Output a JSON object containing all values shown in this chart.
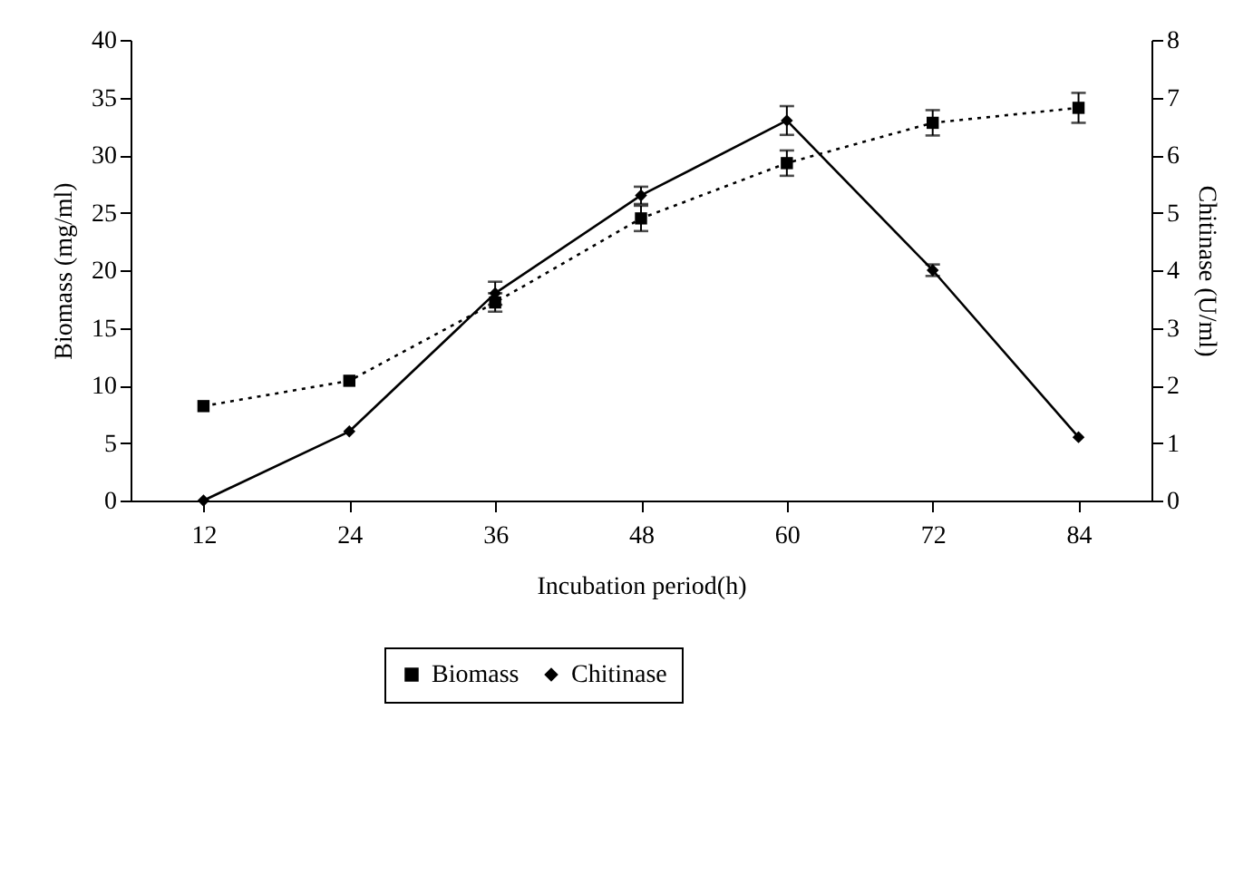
{
  "chart_data": {
    "type": "line",
    "xlabel": "Incubation period(h)",
    "ylabel": "Biomass (mg/ml)",
    "y2label": "Chitinase (U/ml)",
    "x": [
      12,
      24,
      36,
      48,
      60,
      72,
      84
    ],
    "xlim": [
      6,
      90
    ],
    "xticks": [
      12,
      24,
      36,
      48,
      60,
      72,
      84
    ],
    "ylim": [
      0,
      40
    ],
    "yticks": [
      0,
      5,
      10,
      15,
      20,
      25,
      30,
      35,
      40
    ],
    "y2lim": [
      0,
      8
    ],
    "y2ticks": [
      0,
      1,
      2,
      3,
      4,
      5,
      6,
      7,
      8
    ],
    "series": [
      {
        "name": "Biomass",
        "color": "#000000",
        "marker": "square",
        "line_style": "dotted",
        "values": [
          8.2,
          10.4,
          17.2,
          24.5,
          29.3,
          32.8,
          34.1
        ],
        "errors": [
          null,
          null,
          0.8,
          1.1,
          1.1,
          1.1,
          1.3
        ]
      },
      {
        "name": "Chitinase",
        "color": "#000000",
        "marker": "diamond",
        "line_style": "solid",
        "axis": "y2",
        "values": [
          0,
          1.2,
          3.6,
          5.3,
          6.6,
          4.0,
          1.1
        ],
        "errors": [
          null,
          null,
          0.2,
          0.15,
          0.25,
          0.1,
          null
        ]
      }
    ],
    "grid": false,
    "legend": "bottom"
  }
}
